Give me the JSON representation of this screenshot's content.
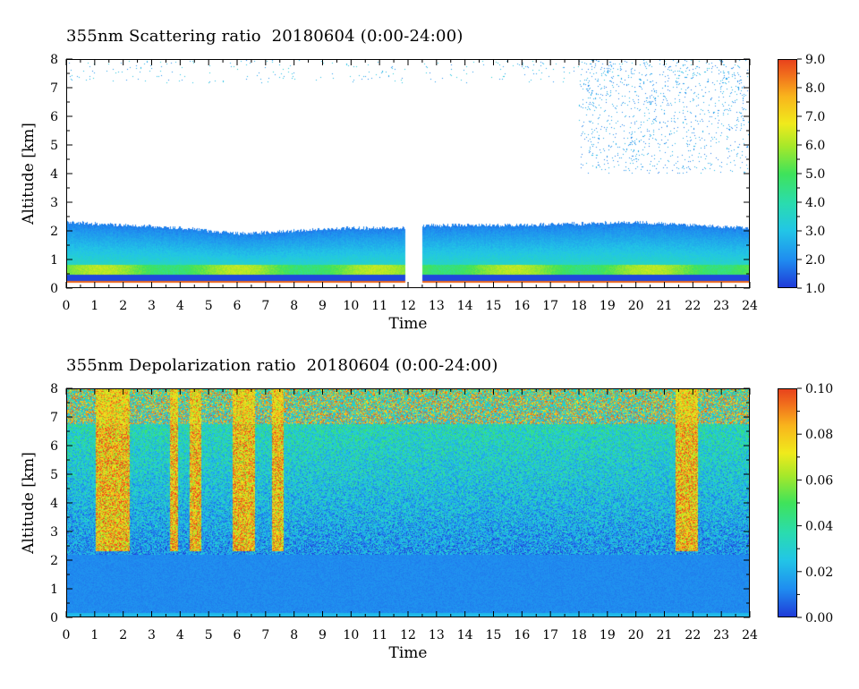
{
  "chart_data": [
    {
      "type": "heatmap",
      "title": "355nm Scattering ratio  20180604 (0:00-24:00)",
      "xlabel": "Time",
      "ylabel": "Altitude [km]",
      "xlim": [
        0,
        24
      ],
      "ylim": [
        0,
        8
      ],
      "x_ticks": [
        "0",
        "1",
        "2",
        "3",
        "4",
        "5",
        "6",
        "7",
        "8",
        "9",
        "10",
        "11",
        "12",
        "13",
        "14",
        "15",
        "16",
        "17",
        "18",
        "19",
        "20",
        "21",
        "22",
        "23",
        "24"
      ],
      "y_ticks": [
        "0",
        "1",
        "2",
        "3",
        "4",
        "5",
        "6",
        "7",
        "8"
      ],
      "colorbar": {
        "range": [
          1.0,
          9.0
        ],
        "ticks": [
          "1.0",
          "2.0",
          "3.0",
          "4.0",
          "5.0",
          "6.0",
          "7.0",
          "8.0",
          "9.0"
        ]
      },
      "features": {
        "boundary_layer_top_km": [
          {
            "x": 0,
            "y": 2.3
          },
          {
            "x": 2,
            "y": 2.2
          },
          {
            "x": 4,
            "y": 2.1
          },
          {
            "x": 6,
            "y": 1.9
          },
          {
            "x": 8,
            "y": 2.0
          },
          {
            "x": 10,
            "y": 2.1
          },
          {
            "x": 11.8,
            "y": 2.1
          },
          {
            "x": 12.6,
            "y": 2.2
          },
          {
            "x": 16,
            "y": 2.2
          },
          {
            "x": 20,
            "y": 2.3
          },
          {
            "x": 24,
            "y": 2.1
          }
        ],
        "data_gap_hours": [
          11.9,
          12.5
        ],
        "upper_cloud_hours": [
          18,
          24
        ]
      }
    },
    {
      "type": "heatmap",
      "title": "355nm Depolarization ratio  20180604 (0:00-24:00)",
      "xlabel": "Time",
      "ylabel": "Altitude [km]",
      "xlim": [
        0,
        24
      ],
      "ylim": [
        0,
        8
      ],
      "x_ticks": [
        "0",
        "1",
        "2",
        "3",
        "4",
        "5",
        "6",
        "7",
        "8",
        "9",
        "10",
        "11",
        "12",
        "13",
        "14",
        "15",
        "16",
        "17",
        "18",
        "19",
        "20",
        "21",
        "22",
        "23",
        "24"
      ],
      "y_ticks": [
        "0",
        "1",
        "2",
        "3",
        "4",
        "5",
        "6",
        "7",
        "8"
      ],
      "colorbar": {
        "range": [
          0.0,
          0.1
        ],
        "ticks": [
          "0.00",
          "0.02",
          "0.04",
          "0.06",
          "0.08",
          "0.10"
        ]
      },
      "features": {
        "high_depol_columns_hours": [
          [
            1.0,
            2.2
          ],
          [
            3.6,
            3.9
          ],
          [
            4.3,
            4.7
          ],
          [
            5.8,
            6.6
          ],
          [
            7.2,
            7.6
          ],
          [
            21.4,
            22.2
          ]
        ],
        "column_base_km": 2.3
      }
    }
  ]
}
